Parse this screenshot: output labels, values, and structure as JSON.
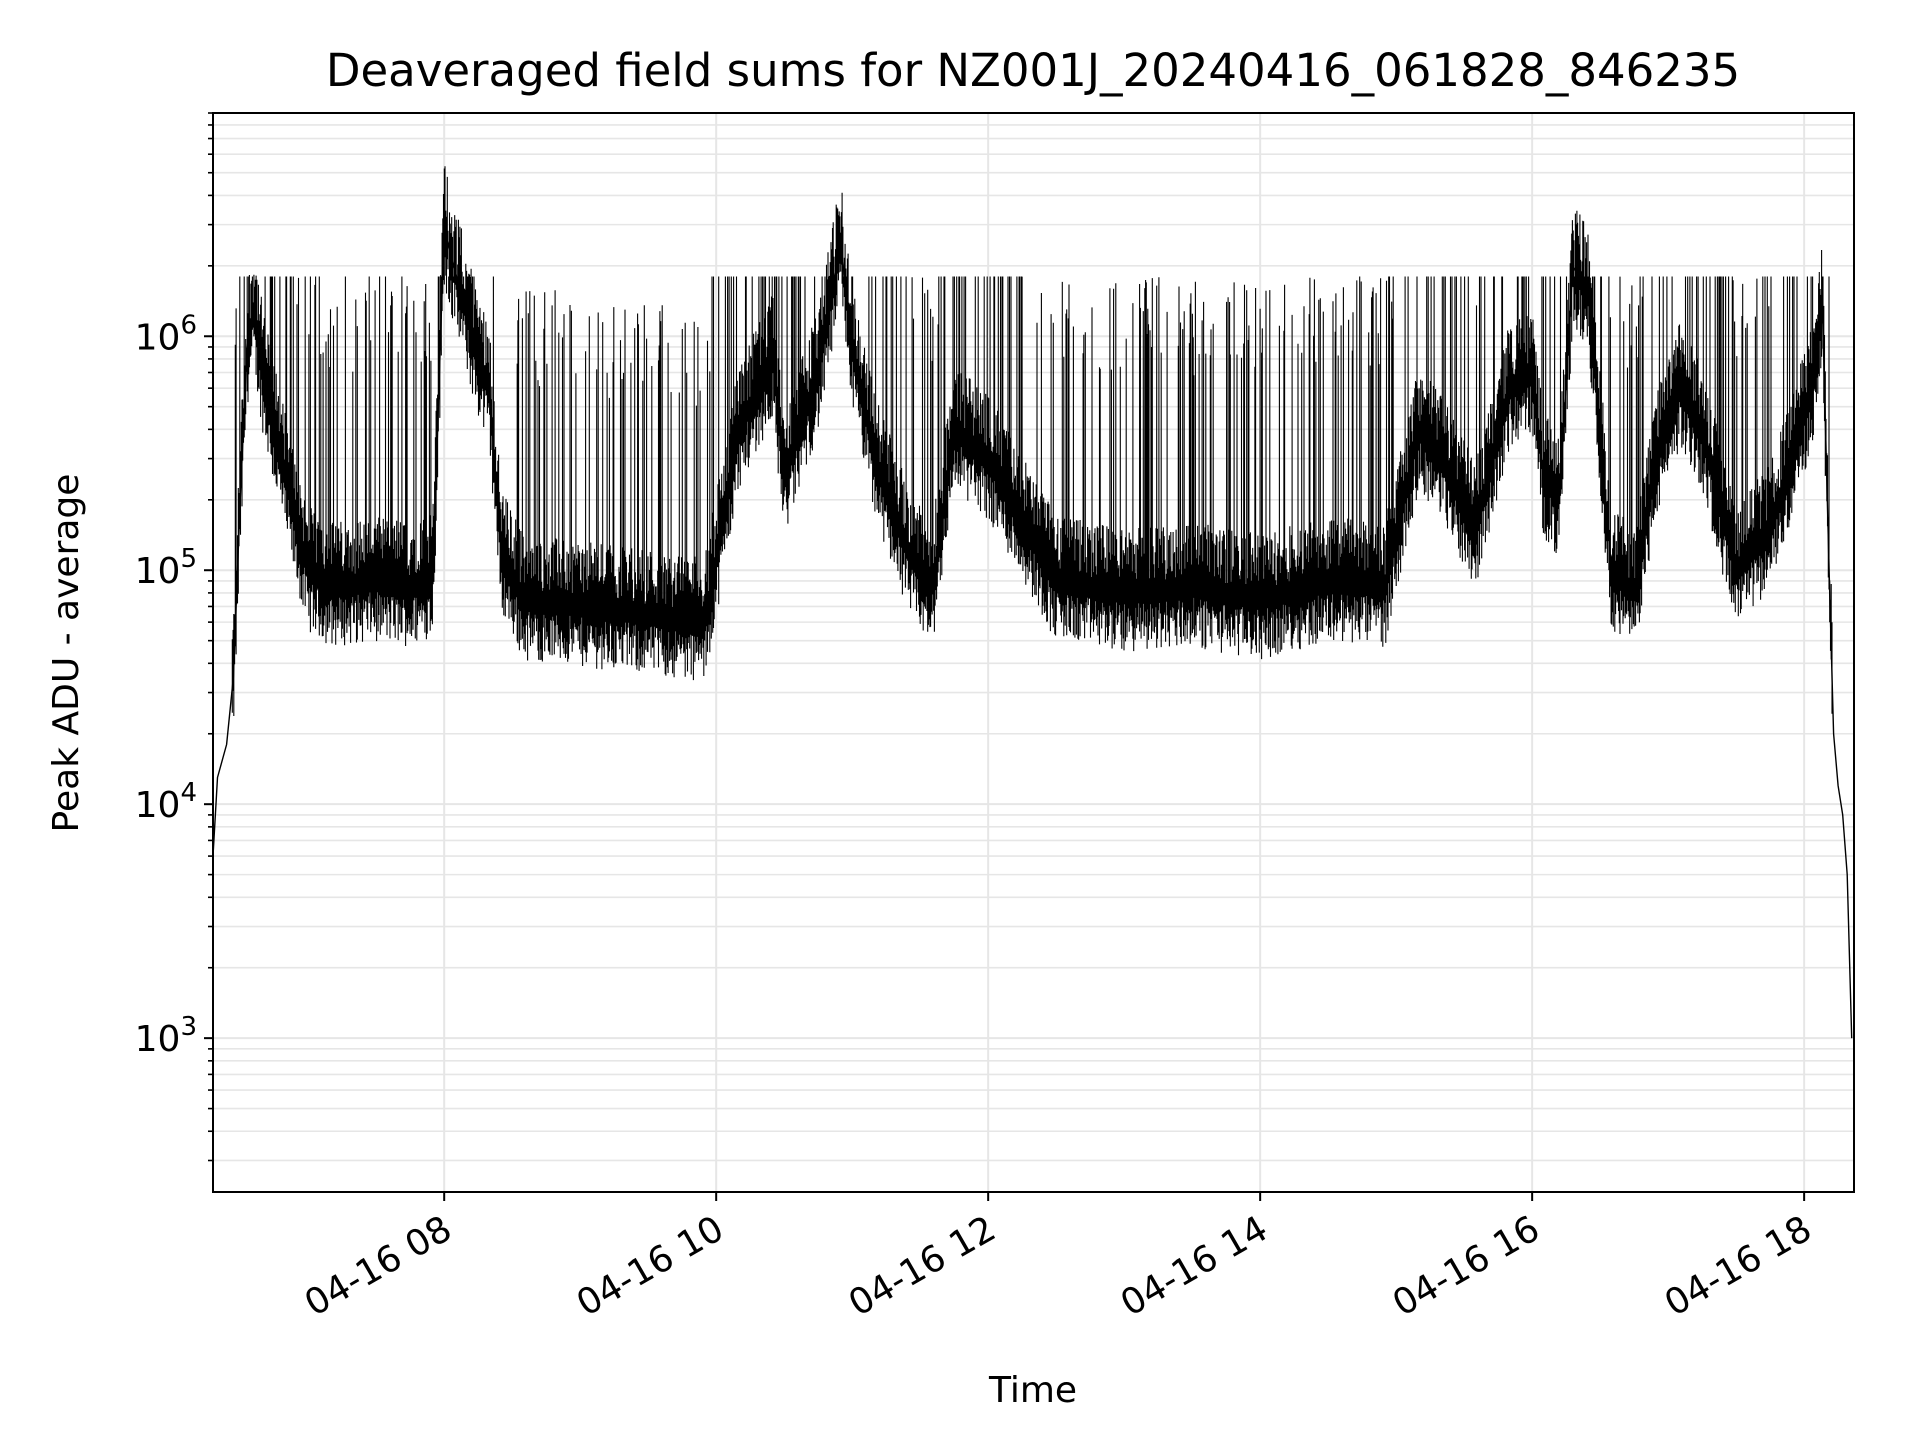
{
  "chart_data": {
    "type": "line",
    "title": "Deaveraged field sums for NZ001J_20240416_061828_846235",
    "xlabel": "Time",
    "ylabel": "Peak ADU - average",
    "yscale": "log",
    "ylim": [
      220,
      9000000
    ],
    "xlim": [
      "2024-04-16 06:18",
      "2024-04-16 18:22"
    ],
    "grid": true,
    "x_ticks": [
      {
        "value": "2024-04-16 08:00",
        "label": "04-16 08"
      },
      {
        "value": "2024-04-16 10:00",
        "label": "04-16 10"
      },
      {
        "value": "2024-04-16 12:00",
        "label": "04-16 12"
      },
      {
        "value": "2024-04-16 14:00",
        "label": "04-16 14"
      },
      {
        "value": "2024-04-16 16:00",
        "label": "04-16 16"
      },
      {
        "value": "2024-04-16 18:00",
        "label": "04-16 18"
      }
    ],
    "y_ticks": [
      {
        "value": 1000,
        "base": "10",
        "exp": "3"
      },
      {
        "value": 10000,
        "base": "10",
        "exp": "4"
      },
      {
        "value": 100000,
        "base": "10",
        "exp": "5"
      },
      {
        "value": 1000000,
        "base": "10",
        "exp": "6"
      }
    ],
    "series": [
      {
        "color": "#000000",
        "x": [
          "2024-04-16 06:18",
          "2024-04-16 06:20",
          "2024-04-16 06:24",
          "2024-04-16 06:27",
          "2024-04-16 06:30",
          "2024-04-16 06:33",
          "2024-04-16 06:36",
          "2024-04-16 06:40",
          "2024-04-16 06:45",
          "2024-04-16 06:50",
          "2024-04-16 06:55",
          "2024-04-16 07:00",
          "2024-04-16 07:10",
          "2024-04-16 07:30",
          "2024-04-16 07:45",
          "2024-04-16 07:55",
          "2024-04-16 08:00",
          "2024-04-16 08:04",
          "2024-04-16 08:08",
          "2024-04-16 08:15",
          "2024-04-16 08:20",
          "2024-04-16 08:25",
          "2024-04-16 08:35",
          "2024-04-16 09:00",
          "2024-04-16 09:30",
          "2024-04-16 09:55",
          "2024-04-16 10:10",
          "2024-04-16 10:25",
          "2024-04-16 10:30",
          "2024-04-16 10:45",
          "2024-04-16 10:55",
          "2024-04-16 11:00",
          "2024-04-16 11:10",
          "2024-04-16 11:25",
          "2024-04-16 11:35",
          "2024-04-16 11:45",
          "2024-04-16 12:00",
          "2024-04-16 12:30",
          "2024-04-16 13:00",
          "2024-04-16 13:30",
          "2024-04-16 14:00",
          "2024-04-16 14:30",
          "2024-04-16 14:55",
          "2024-04-16 15:10",
          "2024-04-16 15:20",
          "2024-04-16 15:35",
          "2024-04-16 15:50",
          "2024-04-16 16:00",
          "2024-04-16 16:05",
          "2024-04-16 16:12",
          "2024-04-16 16:18",
          "2024-04-16 16:25",
          "2024-04-16 16:35",
          "2024-04-16 16:45",
          "2024-04-16 16:55",
          "2024-04-16 17:05",
          "2024-04-16 17:15",
          "2024-04-16 17:30",
          "2024-04-16 17:45",
          "2024-04-16 17:55",
          "2024-04-16 18:05",
          "2024-04-16 18:08",
          "2024-04-16 18:11",
          "2024-04-16 18:13",
          "2024-04-16 18:15",
          "2024-04-16 18:17",
          "2024-04-16 18:19",
          "2024-04-16 18:21"
        ],
        "y": [
          6000,
          13000,
          18000,
          35000,
          200000,
          900000,
          1300000,
          700000,
          400000,
          250000,
          150000,
          100000,
          85000,
          90000,
          85000,
          95000,
          3000000,
          2000000,
          1500000,
          800000,
          600000,
          120000,
          75000,
          70000,
          65000,
          60000,
          400000,
          800000,
          250000,
          700000,
          2500000,
          900000,
          300000,
          120000,
          80000,
          400000,
          300000,
          90000,
          80000,
          85000,
          75000,
          90000,
          85000,
          400000,
          300000,
          150000,
          600000,
          700000,
          250000,
          200000,
          2000000,
          1500000,
          100000,
          80000,
          300000,
          600000,
          400000,
          100000,
          150000,
          300000,
          700000,
          1400000,
          100000,
          20000,
          12000,
          9000,
          5000,
          1000
        ]
      }
    ]
  }
}
